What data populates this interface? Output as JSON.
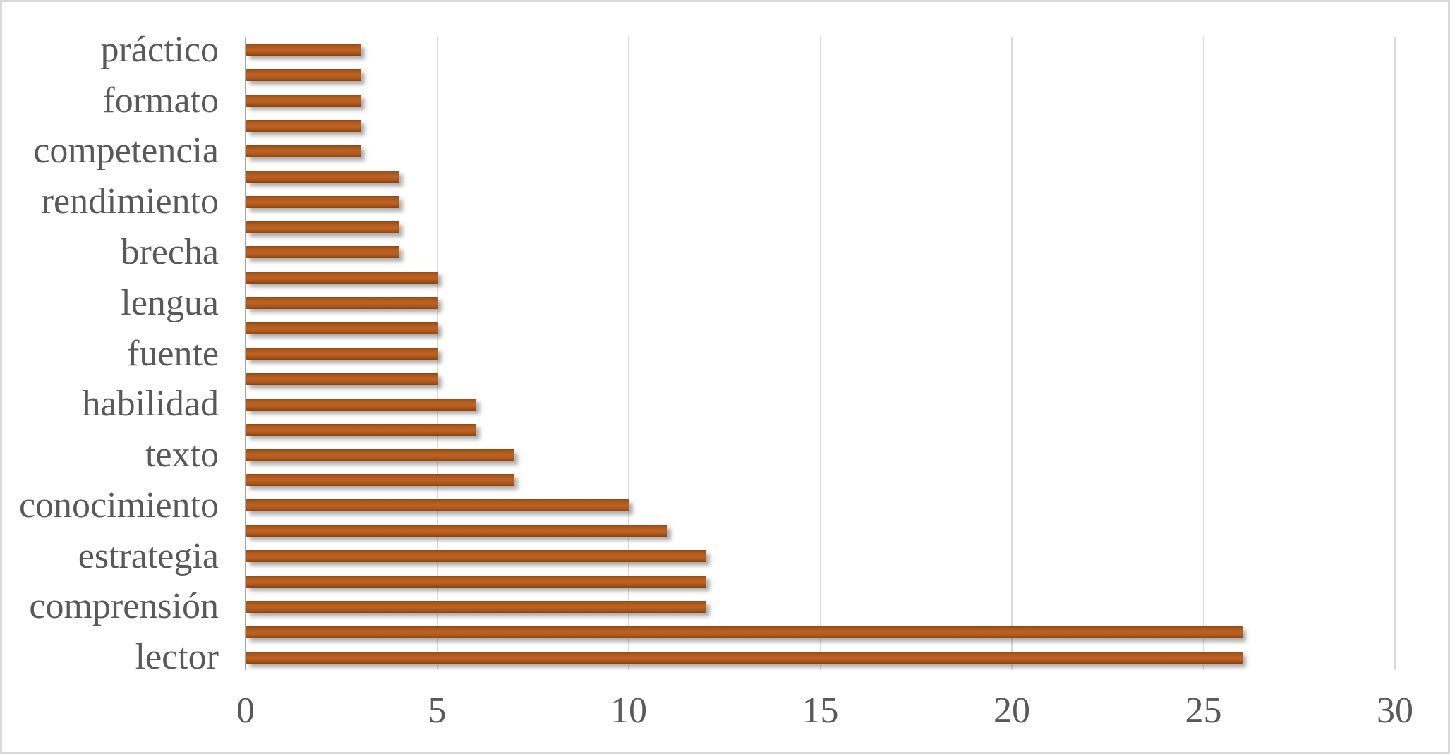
{
  "chart_data": {
    "type": "bar",
    "orientation": "horizontal",
    "title": "",
    "xlabel": "",
    "ylabel": "",
    "category_order": "top-to-bottom",
    "categories": [
      "práctico",
      "",
      "formato",
      "",
      "competencia",
      "",
      "rendimiento",
      "",
      "brecha",
      "",
      "lengua",
      "",
      "fuente",
      "",
      "habilidad",
      "",
      "texto",
      "",
      "conocimiento",
      "",
      "estrategia",
      "",
      "comprensión",
      "",
      "lector"
    ],
    "values": [
      3,
      3,
      3,
      3,
      3,
      4,
      4,
      4,
      4,
      5,
      5,
      5,
      5,
      5,
      6,
      6,
      7,
      7,
      10,
      11,
      12,
      12,
      12,
      26,
      26
    ],
    "xlim": [
      0,
      30
    ],
    "xticks": [
      0,
      5,
      10,
      15,
      20,
      25,
      30
    ],
    "grid": "vertical",
    "legend": "none",
    "bar_color": "#b45a1e",
    "axis_text_color": "#595959",
    "gridline_color": "#d9d9d9",
    "axis_line_color": "#a6a6a6",
    "background_color": "#ffffff",
    "border_color": "#d9d9d9"
  }
}
